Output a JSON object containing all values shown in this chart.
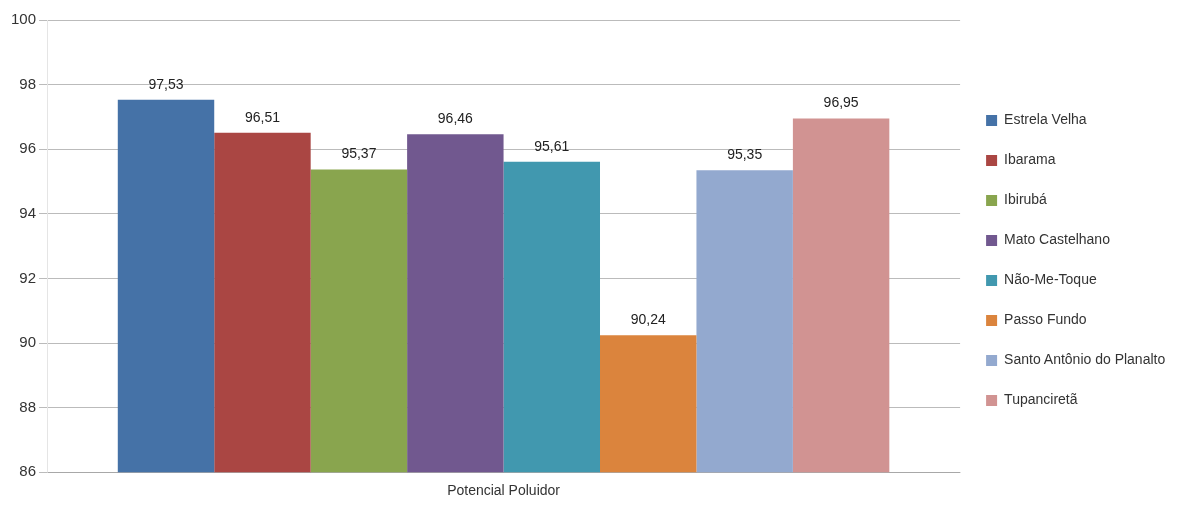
{
  "chart_data": {
    "type": "bar",
    "categories": [
      "Potencial Poluidor"
    ],
    "series": [
      {
        "name": "Estrela Velha",
        "color": "#4572a7",
        "values": [
          97.53
        ],
        "value_labels": [
          "97,53"
        ]
      },
      {
        "name": "Ibarama",
        "color": "#aa4643",
        "values": [
          96.51
        ],
        "value_labels": [
          "96,51"
        ]
      },
      {
        "name": "Ibirubá",
        "color": "#89a54e",
        "values": [
          95.37
        ],
        "value_labels": [
          "95,37"
        ]
      },
      {
        "name": "Mato Castelhano",
        "color": "#71588f",
        "values": [
          96.46
        ],
        "value_labels": [
          "96,46"
        ]
      },
      {
        "name": "Não-Me-Toque",
        "color": "#4198af",
        "values": [
          95.61
        ],
        "value_labels": [
          "95,61"
        ]
      },
      {
        "name": "Passo Fundo",
        "color": "#db843d",
        "values": [
          90.24
        ],
        "value_labels": [
          "90,24"
        ]
      },
      {
        "name": "Santo Antônio do Planalto",
        "color": "#93a9cf",
        "values": [
          95.35
        ],
        "value_labels": [
          "95,35"
        ]
      },
      {
        "name": "Tupanciretã",
        "color": "#d19392",
        "values": [
          96.95
        ],
        "value_labels": [
          "96,95"
        ]
      }
    ],
    "ylim": [
      86,
      100
    ],
    "yticks": [
      86,
      88,
      90,
      92,
      94,
      96,
      98,
      100
    ],
    "grid": "y",
    "legend": "right"
  }
}
